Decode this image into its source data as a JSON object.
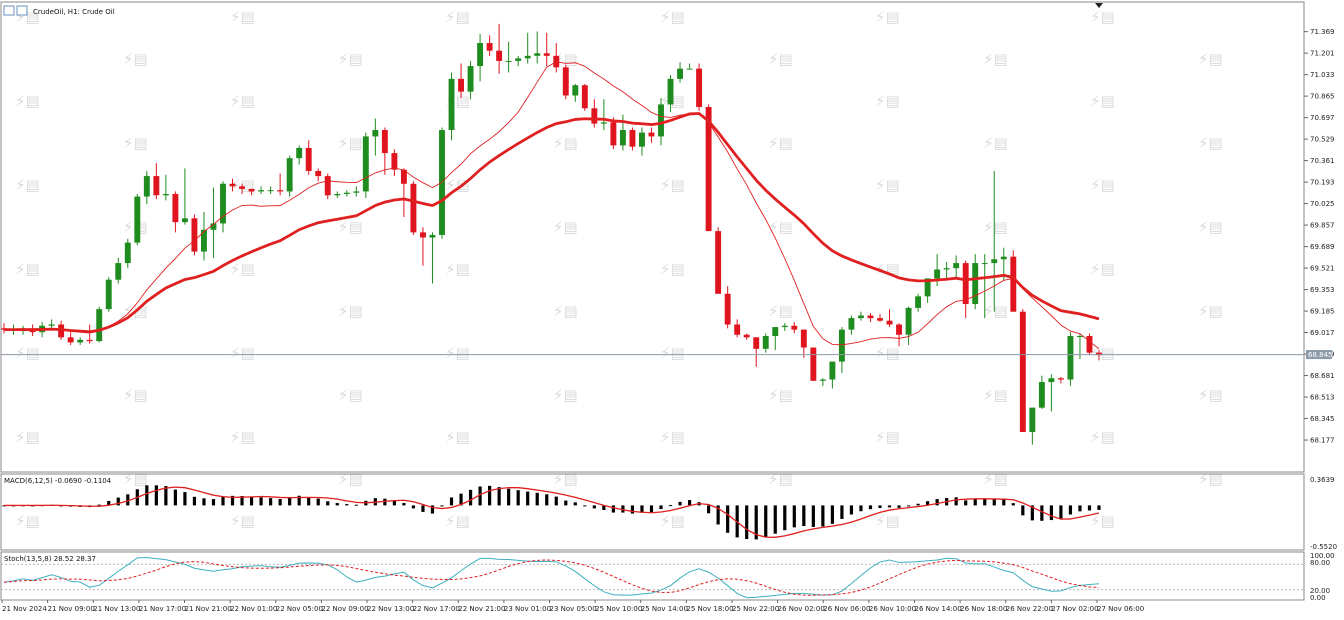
{
  "header": {
    "title": "CrudeOil, H1:  Crude Oil"
  },
  "price_tag": "68.845",
  "chart_data": [
    {
      "type": "candlestick",
      "title": "CrudeOil, H1:  Crude Oil",
      "y_ticks": [
        "71.369",
        "71.201",
        "71.033",
        "70.865",
        "70.697",
        "70.529",
        "70.361",
        "70.193",
        "70.025",
        "69.857",
        "69.689",
        "69.521",
        "69.353",
        "69.185",
        "69.017",
        "68.849",
        "68.681",
        "68.513",
        "68.345",
        "68.177"
      ],
      "ylim": [
        68.06,
        71.46
      ],
      "current_price": 68.845,
      "x_tick_labels": [
        "21 Nov 2024",
        "21 Nov 09:00",
        "21 Nov 13:00",
        "21 Nov 17:00",
        "21 Nov 21:00",
        "22 Nov 01:00",
        "22 Nov 05:00",
        "22 Nov 09:00",
        "22 Nov 13:00",
        "22 Nov 17:00",
        "22 Nov 21:00",
        "23 Nov 01:00",
        "23 Nov 05:00",
        "25 Nov 10:00",
        "25 Nov 14:00",
        "25 Nov 18:00",
        "25 Nov 22:00",
        "26 Nov 02:00",
        "26 Nov 06:00",
        "26 Nov 10:00",
        "26 Nov 14:00",
        "26 Nov 18:00",
        "26 Nov 22:00",
        "27 Nov 02:00",
        "27 Nov 06:00"
      ],
      "candles_ohlc": [
        [
          69.05,
          69.09,
          69.01,
          69.04
        ],
        [
          69.04,
          69.08,
          69.0,
          69.04
        ],
        [
          69.03,
          69.07,
          69.0,
          69.05
        ],
        [
          69.05,
          69.08,
          68.99,
          69.02
        ],
        [
          69.02,
          69.1,
          68.98,
          69.07
        ],
        [
          69.07,
          69.12,
          69.03,
          69.08
        ],
        [
          69.08,
          69.11,
          68.96,
          68.98
        ],
        [
          68.98,
          69.02,
          68.92,
          68.94
        ],
        [
          68.94,
          68.98,
          68.92,
          68.96
        ],
        [
          68.96,
          69.08,
          68.93,
          68.95
        ],
        [
          68.95,
          69.22,
          68.94,
          69.2
        ],
        [
          69.2,
          69.45,
          69.18,
          69.43
        ],
        [
          69.43,
          69.6,
          69.4,
          69.56
        ],
        [
          69.56,
          69.75,
          69.52,
          69.72
        ],
        [
          69.72,
          70.1,
          69.7,
          70.08
        ],
        [
          70.08,
          70.28,
          70.02,
          70.24
        ],
        [
          70.24,
          70.34,
          70.06,
          70.09
        ],
        [
          70.09,
          70.25,
          70.05,
          70.1
        ],
        [
          70.1,
          70.12,
          69.8,
          69.88
        ],
        [
          69.88,
          70.3,
          69.86,
          69.91
        ],
        [
          69.91,
          69.94,
          69.62,
          69.65
        ],
        [
          69.65,
          69.96,
          69.58,
          69.82
        ],
        [
          69.82,
          70.15,
          69.6,
          69.87
        ],
        [
          69.87,
          70.2,
          69.8,
          70.18
        ],
        [
          70.18,
          70.22,
          70.12,
          70.16
        ],
        [
          70.16,
          70.18,
          70.1,
          70.14
        ],
        [
          70.14,
          70.14,
          70.09,
          70.12
        ],
        [
          70.12,
          70.16,
          70.1,
          70.13
        ],
        [
          70.13,
          70.16,
          70.1,
          70.13
        ],
        [
          70.13,
          70.26,
          70.09,
          70.12
        ],
        [
          70.12,
          70.4,
          70.08,
          70.38
        ],
        [
          70.38,
          70.48,
          70.33,
          70.46
        ],
        [
          70.46,
          70.52,
          70.25,
          70.28
        ],
        [
          70.28,
          70.3,
          70.2,
          70.24
        ],
        [
          70.24,
          70.26,
          70.06,
          70.09
        ],
        [
          70.09,
          70.12,
          70.07,
          70.1
        ],
        [
          70.1,
          70.13,
          70.08,
          70.11
        ],
        [
          70.11,
          70.16,
          70.08,
          70.12
        ],
        [
          70.12,
          70.58,
          70.07,
          70.55
        ],
        [
          70.55,
          70.69,
          70.4,
          70.6
        ],
        [
          70.6,
          70.62,
          70.25,
          70.42
        ],
        [
          70.42,
          70.45,
          70.24,
          70.29
        ],
        [
          70.29,
          70.3,
          69.92,
          70.18
        ],
        [
          70.18,
          70.2,
          69.78,
          69.8
        ],
        [
          69.8,
          69.84,
          69.54,
          69.76
        ],
        [
          69.76,
          69.8,
          69.4,
          69.78
        ],
        [
          69.78,
          70.62,
          69.75,
          70.6
        ],
        [
          70.6,
          71.05,
          70.52,
          71.0
        ],
        [
          71.0,
          71.12,
          70.85,
          70.9
        ],
        [
          70.9,
          71.14,
          70.84,
          71.1
        ],
        [
          71.1,
          71.35,
          70.98,
          71.28
        ],
        [
          71.28,
          71.34,
          71.18,
          71.22
        ],
        [
          71.22,
          71.43,
          71.04,
          71.14
        ],
        [
          71.14,
          71.29,
          71.05,
          71.14
        ],
        [
          71.14,
          71.18,
          71.1,
          71.16
        ],
        [
          71.16,
          71.36,
          71.12,
          71.18
        ],
        [
          71.18,
          71.37,
          71.12,
          71.2
        ],
        [
          71.2,
          71.36,
          71.1,
          71.18
        ],
        [
          71.18,
          71.28,
          71.05,
          71.09
        ],
        [
          71.09,
          71.11,
          70.84,
          70.87
        ],
        [
          70.87,
          70.96,
          70.82,
          70.95
        ],
        [
          70.95,
          70.96,
          70.75,
          70.77
        ],
        [
          70.77,
          70.84,
          70.62,
          70.65
        ],
        [
          70.65,
          70.84,
          70.6,
          70.66
        ],
        [
          70.66,
          70.7,
          70.45,
          70.48
        ],
        [
          70.48,
          70.72,
          70.44,
          70.6
        ],
        [
          70.6,
          70.62,
          70.44,
          70.47
        ],
        [
          70.47,
          70.62,
          70.4,
          70.58
        ],
        [
          70.58,
          70.62,
          70.5,
          70.55
        ],
        [
          70.55,
          70.85,
          70.48,
          70.8
        ],
        [
          70.8,
          71.03,
          70.74,
          71.0
        ],
        [
          71.0,
          71.13,
          70.97,
          71.08
        ],
        [
          71.08,
          71.12,
          71.08,
          71.08
        ],
        [
          71.08,
          71.12,
          70.75,
          70.78
        ],
        [
          70.78,
          70.8,
          69.81,
          69.81
        ],
        [
          69.81,
          69.84,
          69.32,
          69.32
        ],
        [
          69.32,
          69.38,
          69.05,
          69.08
        ],
        [
          69.08,
          69.12,
          68.98,
          69.0
        ],
        [
          69.0,
          69.01,
          68.96,
          68.98
        ],
        [
          68.98,
          68.98,
          68.75,
          68.89
        ],
        [
          68.89,
          69.01,
          68.86,
          68.99
        ],
        [
          68.99,
          69.01,
          68.88,
          69.06
        ],
        [
          69.06,
          69.09,
          69.03,
          69.07
        ],
        [
          69.07,
          69.1,
          69.01,
          69.04
        ],
        [
          69.04,
          69.04,
          68.82,
          68.9
        ],
        [
          68.9,
          68.9,
          68.64,
          68.64
        ],
        [
          68.64,
          68.66,
          68.6,
          68.65
        ],
        [
          68.65,
          68.78,
          68.58,
          68.79
        ],
        [
          68.79,
          69.06,
          68.7,
          69.04
        ],
        [
          69.04,
          69.15,
          69.0,
          69.13
        ],
        [
          69.13,
          69.18,
          69.11,
          69.15
        ],
        [
          69.15,
          69.17,
          69.1,
          69.13
        ],
        [
          69.13,
          69.16,
          69.1,
          69.11
        ],
        [
          69.11,
          69.2,
          69.06,
          69.08
        ],
        [
          69.08,
          69.09,
          68.91,
          69.0
        ],
        [
          69.0,
          69.22,
          68.92,
          69.21
        ],
        [
          69.21,
          69.32,
          69.18,
          69.3
        ],
        [
          69.3,
          69.44,
          69.25,
          69.44
        ],
        [
          69.44,
          69.63,
          69.38,
          69.51
        ],
        [
          69.51,
          69.57,
          69.44,
          69.52
        ],
        [
          69.52,
          69.62,
          69.45,
          69.56
        ],
        [
          69.56,
          69.58,
          69.13,
          69.24
        ],
        [
          69.24,
          69.63,
          69.2,
          69.56
        ],
        [
          69.56,
          69.63,
          69.13,
          69.56
        ],
        [
          69.56,
          70.28,
          69.18,
          69.59
        ],
        [
          69.59,
          69.68,
          69.42,
          69.61
        ],
        [
          69.61,
          69.66,
          69.18,
          69.18
        ],
        [
          69.18,
          69.2,
          68.24,
          68.24
        ],
        [
          68.24,
          68.43,
          68.14,
          68.43
        ],
        [
          68.43,
          68.68,
          68.42,
          68.63
        ],
        [
          68.63,
          68.69,
          68.4,
          68.66
        ],
        [
          68.66,
          68.67,
          68.62,
          68.65
        ],
        [
          68.65,
          69.02,
          68.6,
          68.99
        ],
        [
          68.99,
          69.01,
          68.81,
          68.99
        ],
        [
          68.99,
          69.01,
          68.84,
          68.86
        ],
        [
          68.86,
          68.88,
          68.8,
          68.84
        ]
      ],
      "ma_fast_color": "#e02020",
      "ma_slow_color": "#e02020",
      "bull_color": "#1e8c1e",
      "bear_color": "#e0141e"
    },
    {
      "type": "bar",
      "name": "MACD",
      "label": "MACD(6,12,5) -0.0690 -0.1104",
      "y_ticks": [
        "0.3639",
        "-0.5520"
      ],
      "ylim": [
        -0.552,
        0.3639
      ],
      "histogram_color": "#000000",
      "signal_color": "#e02020"
    },
    {
      "type": "line",
      "name": "Stochastic",
      "label": "Stoch(13,5,8) 28.52 28.37",
      "y_ticks": [
        "100.00",
        "80.00",
        "20.00",
        "0.00"
      ],
      "ylim": [
        0,
        100
      ],
      "main_color": "#3fb0c0",
      "signal_color": "#e02020"
    }
  ]
}
